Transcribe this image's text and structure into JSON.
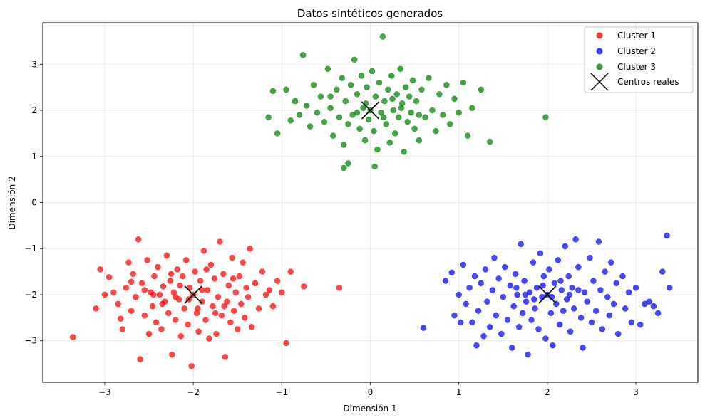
{
  "chart_data": {
    "type": "scatter",
    "title": "Datos sintéticos generados",
    "xlabel": "Dimensión 1",
    "ylabel": "Dimensión 2",
    "xlim": [
      -3.7,
      3.7
    ],
    "ylim": [
      -3.9,
      3.9
    ],
    "xticks": [
      -3,
      -2,
      -1,
      0,
      1,
      2,
      3
    ],
    "yticks": [
      -3,
      -2,
      -1,
      0,
      1,
      2,
      3
    ],
    "xtick_labels": [
      "−3",
      "−2",
      "−1",
      "0",
      "1",
      "2",
      "3"
    ],
    "ytick_labels": [
      "−3",
      "−2",
      "−1",
      "0",
      "1",
      "2",
      "3"
    ],
    "grid": true,
    "legend_position": "top-right",
    "series": [
      {
        "name": "Cluster 1",
        "color": "#ff0000",
        "points": [
          [
            -3.36,
            -2.92
          ],
          [
            -3.1,
            -2.3
          ],
          [
            -3.05,
            -1.45
          ],
          [
            -3.0,
            -2.0
          ],
          [
            -2.95,
            -1.62
          ],
          [
            -2.9,
            -1.95
          ],
          [
            -2.85,
            -2.2
          ],
          [
            -2.82,
            -2.52
          ],
          [
            -2.8,
            -2.75
          ],
          [
            -2.76,
            -1.85
          ],
          [
            -2.73,
            -1.3
          ],
          [
            -2.7,
            -2.35
          ],
          [
            -2.68,
            -1.55
          ],
          [
            -2.65,
            -2.05
          ],
          [
            -2.62,
            -0.8
          ],
          [
            -2.6,
            -3.4
          ],
          [
            -2.58,
            -1.75
          ],
          [
            -2.55,
            -2.45
          ],
          [
            -2.52,
            -1.25
          ],
          [
            -2.5,
            -2.85
          ],
          [
            -2.48,
            -1.95
          ],
          [
            -2.46,
            -2.25
          ],
          [
            -2.44,
            -1.6
          ],
          [
            -2.42,
            -2.6
          ],
          [
            -2.4,
            -1.4
          ],
          [
            -2.38,
            -2.0
          ],
          [
            -2.36,
            -2.75
          ],
          [
            -2.34,
            -1.82
          ],
          [
            -2.32,
            -2.15
          ],
          [
            -2.3,
            -1.15
          ],
          [
            -2.28,
            -2.4
          ],
          [
            -2.26,
            -1.7
          ],
          [
            -2.24,
            -3.3
          ],
          [
            -2.22,
            -1.95
          ],
          [
            -2.2,
            -2.55
          ],
          [
            -2.18,
            -1.45
          ],
          [
            -2.16,
            -2.1
          ],
          [
            -2.14,
            -2.9
          ],
          [
            -2.12,
            -1.6
          ],
          [
            -2.1,
            -2.3
          ],
          [
            -2.08,
            -1.25
          ],
          [
            -2.06,
            -2.65
          ],
          [
            -2.04,
            -1.85
          ],
          [
            -2.02,
            -3.55
          ],
          [
            -2.0,
            -2.0
          ],
          [
            -1.98,
            -1.5
          ],
          [
            -1.96,
            -2.4
          ],
          [
            -1.94,
            -2.8
          ],
          [
            -1.92,
            -1.7
          ],
          [
            -1.9,
            -2.15
          ],
          [
            -1.88,
            -1.05
          ],
          [
            -1.86,
            -2.55
          ],
          [
            -1.84,
            -1.9
          ],
          [
            -1.82,
            -2.95
          ],
          [
            -1.8,
            -1.35
          ],
          [
            -1.78,
            -2.25
          ],
          [
            -1.76,
            -1.65
          ],
          [
            -1.74,
            -2.85
          ],
          [
            -1.72,
            -2.05
          ],
          [
            -1.7,
            -0.85
          ],
          [
            -1.68,
            -2.45
          ],
          [
            -1.66,
            -1.55
          ],
          [
            -1.64,
            -3.35
          ],
          [
            -1.62,
            -2.15
          ],
          [
            -1.6,
            -1.8
          ],
          [
            -1.58,
            -2.6
          ],
          [
            -1.56,
            -1.2
          ],
          [
            -1.54,
            -2.35
          ],
          [
            -1.52,
            -1.95
          ],
          [
            -1.5,
            -2.75
          ],
          [
            -1.48,
            -1.6
          ],
          [
            -1.46,
            -2.2
          ],
          [
            -1.44,
            -1.3
          ],
          [
            -1.42,
            -2.5
          ],
          [
            -1.4,
            -1.85
          ],
          [
            -1.38,
            -2.05
          ],
          [
            -1.36,
            -1.0
          ],
          [
            -1.34,
            -2.7
          ],
          [
            -1.3,
            -1.75
          ],
          [
            -1.26,
            -2.3
          ],
          [
            -1.22,
            -1.5
          ],
          [
            -1.18,
            -2.0
          ],
          [
            -1.14,
            -1.9
          ],
          [
            -1.1,
            -2.25
          ],
          [
            -1.05,
            -1.7
          ],
          [
            -1.0,
            -1.95
          ],
          [
            -0.95,
            -3.05
          ],
          [
            -0.9,
            -1.5
          ],
          [
            -0.75,
            -1.82
          ],
          [
            -0.35,
            -1.85
          ],
          [
            -2.7,
            -1.72
          ],
          [
            -2.55,
            -1.9
          ],
          [
            -2.35,
            -2.2
          ],
          [
            -2.25,
            -1.55
          ],
          [
            -2.15,
            -1.8
          ],
          [
            -1.95,
            -2.3
          ],
          [
            -1.85,
            -1.45
          ],
          [
            -1.75,
            -2.4
          ],
          [
            -1.65,
            -2.25
          ],
          [
            -1.55,
            -1.65
          ],
          [
            -2.45,
            -2.0
          ],
          [
            -2.05,
            -2.1
          ],
          [
            -1.9,
            -1.9
          ],
          [
            -2.2,
            -2.05
          ]
        ]
      },
      {
        "name": "Cluster 2",
        "color": "#0000ff",
        "points": [
          [
            0.6,
            -2.72
          ],
          [
            0.85,
            -1.7
          ],
          [
            0.92,
            -1.52
          ],
          [
            0.95,
            -2.45
          ],
          [
            1.0,
            -2.0
          ],
          [
            1.02,
            -2.6
          ],
          [
            1.05,
            -1.35
          ],
          [
            1.08,
            -2.2
          ],
          [
            1.12,
            -1.85
          ],
          [
            1.15,
            -2.6
          ],
          [
            1.18,
            -1.6
          ],
          [
            1.2,
            -3.1
          ],
          [
            1.22,
            -2.35
          ],
          [
            1.25,
            -1.75
          ],
          [
            1.28,
            -2.9
          ],
          [
            1.3,
            -1.45
          ],
          [
            1.32,
            -2.15
          ],
          [
            1.35,
            -2.7
          ],
          [
            1.38,
            -1.9
          ],
          [
            1.4,
            -1.2
          ],
          [
            1.42,
            -2.45
          ],
          [
            1.45,
            -1.65
          ],
          [
            1.48,
            -2.85
          ],
          [
            1.5,
            -2.05
          ],
          [
            1.52,
            -1.4
          ],
          [
            1.55,
            -2.55
          ],
          [
            1.58,
            -1.8
          ],
          [
            1.6,
            -3.15
          ],
          [
            1.62,
            -2.25
          ],
          [
            1.64,
            -1.55
          ],
          [
            1.66,
            -2.0
          ],
          [
            1.68,
            -2.7
          ],
          [
            1.7,
            -0.9
          ],
          [
            1.72,
            -2.4
          ],
          [
            1.74,
            -1.7
          ],
          [
            1.76,
            -2.15
          ],
          [
            1.78,
            -3.3
          ],
          [
            1.8,
            -1.95
          ],
          [
            1.82,
            -2.55
          ],
          [
            1.84,
            -1.3
          ],
          [
            1.86,
            -2.3
          ],
          [
            1.88,
            -1.85
          ],
          [
            1.9,
            -2.75
          ],
          [
            1.92,
            -1.1
          ],
          [
            1.94,
            -2.05
          ],
          [
            1.96,
            -1.6
          ],
          [
            1.98,
            -2.95
          ],
          [
            2.0,
            -2.0
          ],
          [
            2.02,
            -1.45
          ],
          [
            2.04,
            -2.4
          ],
          [
            2.06,
            -3.1
          ],
          [
            2.08,
            -1.75
          ],
          [
            2.1,
            -2.2
          ],
          [
            2.12,
            -1.25
          ],
          [
            2.14,
            -2.65
          ],
          [
            2.16,
            -1.9
          ],
          [
            2.18,
            -2.35
          ],
          [
            2.2,
            -0.95
          ],
          [
            2.22,
            -2.1
          ],
          [
            2.24,
            -1.6
          ],
          [
            2.26,
            -2.8
          ],
          [
            2.28,
            -1.85
          ],
          [
            2.3,
            -2.3
          ],
          [
            2.32,
            -0.8
          ],
          [
            2.35,
            -1.4
          ],
          [
            2.38,
            -2.5
          ],
          [
            2.4,
            -3.15
          ],
          [
            2.42,
            -1.95
          ],
          [
            2.45,
            -2.15
          ],
          [
            2.48,
            -1.2
          ],
          [
            2.5,
            -2.6
          ],
          [
            2.52,
            -1.7
          ],
          [
            2.55,
            -2.35
          ],
          [
            2.58,
            -0.85
          ],
          [
            2.6,
            -1.9
          ],
          [
            2.62,
            -2.75
          ],
          [
            2.65,
            -1.5
          ],
          [
            2.68,
            -2.05
          ],
          [
            2.7,
            -2.45
          ],
          [
            2.72,
            -1.3
          ],
          [
            2.75,
            -2.2
          ],
          [
            2.78,
            -1.75
          ],
          [
            2.8,
            -2.85
          ],
          [
            2.85,
            -1.6
          ],
          [
            2.88,
            -2.3
          ],
          [
            2.92,
            -1.95
          ],
          [
            2.95,
            -2.6
          ],
          [
            3.0,
            -1.85
          ],
          [
            3.05,
            -2.65
          ],
          [
            3.1,
            -2.2
          ],
          [
            3.15,
            -2.15
          ],
          [
            3.2,
            -2.25
          ],
          [
            3.25,
            -2.4
          ],
          [
            3.3,
            -1.5
          ],
          [
            3.35,
            -0.72
          ],
          [
            3.38,
            -1.85
          ],
          [
            1.75,
            -2.0
          ],
          [
            1.85,
            -2.1
          ],
          [
            1.95,
            -1.8
          ],
          [
            2.05,
            -2.05
          ],
          [
            2.15,
            -1.7
          ],
          [
            2.25,
            -2.0
          ],
          [
            1.65,
            -1.85
          ],
          [
            2.35,
            -1.9
          ]
        ]
      },
      {
        "name": "Cluster 3",
        "color": "#008000",
        "points": [
          [
            -1.15,
            1.85
          ],
          [
            -1.1,
            2.42
          ],
          [
            -1.05,
            1.5
          ],
          [
            -0.95,
            2.45
          ],
          [
            -0.9,
            1.78
          ],
          [
            -0.85,
            2.2
          ],
          [
            -0.8,
            1.9
          ],
          [
            -0.76,
            3.2
          ],
          [
            -0.72,
            2.1
          ],
          [
            -0.68,
            1.65
          ],
          [
            -0.64,
            2.55
          ],
          [
            -0.6,
            1.95
          ],
          [
            -0.56,
            2.3
          ],
          [
            -0.52,
            1.75
          ],
          [
            -0.48,
            2.9
          ],
          [
            -0.45,
            2.05
          ],
          [
            -0.42,
            1.45
          ],
          [
            -0.38,
            2.45
          ],
          [
            -0.35,
            1.85
          ],
          [
            -0.32,
            2.7
          ],
          [
            -0.3,
            1.25
          ],
          [
            -0.28,
            2.2
          ],
          [
            -0.25,
            0.85
          ],
          [
            -0.22,
            2.55
          ],
          [
            -0.2,
            1.9
          ],
          [
            -0.18,
            3.1
          ],
          [
            -0.15,
            2.35
          ],
          [
            -0.12,
            1.6
          ],
          [
            -0.1,
            2.75
          ],
          [
            -0.08,
            2.05
          ],
          [
            -0.06,
            1.35
          ],
          [
            -0.04,
            2.5
          ],
          [
            -0.02,
            1.8
          ],
          [
            0.0,
            2.0
          ],
          [
            0.02,
            2.85
          ],
          [
            0.04,
            1.55
          ],
          [
            0.06,
            2.3
          ],
          [
            0.08,
            1.15
          ],
          [
            0.1,
            2.6
          ],
          [
            0.12,
            1.95
          ],
          [
            0.14,
            3.6
          ],
          [
            0.16,
            2.2
          ],
          [
            0.18,
            1.7
          ],
          [
            0.2,
            2.45
          ],
          [
            0.22,
            1.3
          ],
          [
            0.24,
            2.75
          ],
          [
            0.26,
            2.0
          ],
          [
            0.28,
            1.5
          ],
          [
            0.3,
            2.35
          ],
          [
            0.32,
            1.85
          ],
          [
            0.34,
            2.9
          ],
          [
            0.36,
            2.15
          ],
          [
            0.38,
            1.1
          ],
          [
            0.4,
            2.5
          ],
          [
            0.42,
            1.75
          ],
          [
            0.44,
            2.3
          ],
          [
            0.46,
            1.95
          ],
          [
            0.48,
            2.65
          ],
          [
            0.5,
            1.6
          ],
          [
            0.52,
            2.2
          ],
          [
            0.55,
            1.35
          ],
          [
            0.58,
            2.45
          ],
          [
            0.62,
            1.85
          ],
          [
            0.66,
            2.7
          ],
          [
            0.7,
            2.0
          ],
          [
            0.74,
            1.55
          ],
          [
            0.78,
            2.35
          ],
          [
            0.82,
            1.9
          ],
          [
            0.86,
            2.55
          ],
          [
            0.9,
            1.7
          ],
          [
            0.95,
            2.25
          ],
          [
            1.0,
            1.95
          ],
          [
            1.05,
            2.6
          ],
          [
            1.1,
            1.45
          ],
          [
            1.15,
            2.05
          ],
          [
            1.25,
            2.45
          ],
          [
            1.35,
            1.32
          ],
          [
            1.98,
            1.85
          ],
          [
            -0.3,
            0.75
          ],
          [
            0.05,
            0.78
          ],
          [
            -0.45,
            2.3
          ],
          [
            -0.25,
            1.7
          ],
          [
            -0.05,
            2.15
          ],
          [
            0.15,
            1.85
          ],
          [
            0.35,
            2.05
          ],
          [
            0.55,
            1.9
          ],
          [
            -0.15,
            1.95
          ],
          [
            0.25,
            2.25
          ]
        ]
      }
    ],
    "centers": {
      "name": "Centros reales",
      "color": "#000000",
      "points": [
        [
          -2,
          -2
        ],
        [
          2,
          -2
        ],
        [
          0,
          2
        ]
      ]
    }
  }
}
